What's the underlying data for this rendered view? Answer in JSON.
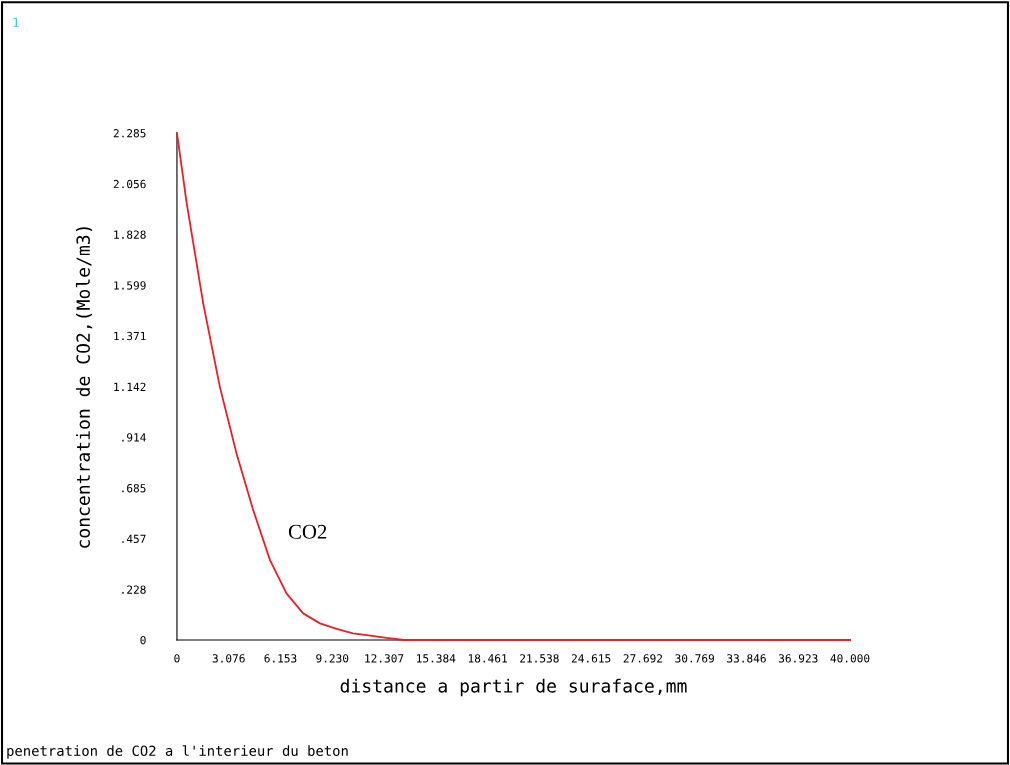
{
  "chart_data": {
    "type": "line",
    "xlabel": "distance a partir de suraface,mm",
    "ylabel": "concentration de CO2,(Mole/m3)",
    "annotations": [
      "1",
      "penetration de CO2 a l'interieur du beton"
    ],
    "x": [
      0,
      0.58,
      1.56,
      2.55,
      3.54,
      4.53,
      5.53,
      6.51,
      7.5,
      8.5,
      9.49,
      10.46,
      11.5,
      12.46,
      13.5,
      20,
      30,
      40
    ],
    "series": [
      {
        "name": "CO2",
        "color": "#e8202a",
        "values": [
          2.285,
          1.968,
          1.517,
          1.141,
          0.841,
          0.586,
          0.36,
          0.21,
          0.12,
          0.075,
          0.05,
          0.03,
          0.02,
          0.01,
          0,
          0,
          0,
          0
        ]
      }
    ],
    "xlim": [
      0,
      40
    ],
    "ylim": [
      0,
      2.285
    ],
    "xticks": [
      0,
      3.076,
      6.153,
      {
        "value": 9.23,
        "label": "9.230"
      },
      12.307,
      15.384,
      18.461,
      21.538,
      24.615,
      27.692,
      30.769,
      33.846,
      36.923,
      {
        "value": 40,
        "label": "40.000"
      }
    ],
    "yticks": [
      0,
      {
        "value": 0.228,
        "label": ".228"
      },
      {
        "value": 0.457,
        "label": ".457"
      },
      {
        "value": 0.685,
        "label": ".685"
      },
      {
        "value": 0.914,
        "label": ".914"
      },
      1.142,
      1.371,
      1.599,
      1.828,
      2.056,
      2.285
    ],
    "grid": false,
    "legend": false,
    "marker": "none",
    "line_style": "solid"
  }
}
